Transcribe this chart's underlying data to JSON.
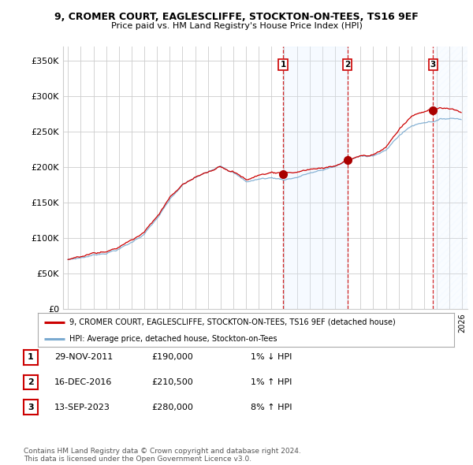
{
  "title_line1": "9, CROMER COURT, EAGLESCLIFFE, STOCKTON-ON-TEES, TS16 9EF",
  "title_line2": "Price paid vs. HM Land Registry's House Price Index (HPI)",
  "ylabel_ticks": [
    "£0",
    "£50K",
    "£100K",
    "£150K",
    "£200K",
    "£250K",
    "£300K",
    "£350K"
  ],
  "ytick_values": [
    0,
    50000,
    100000,
    150000,
    200000,
    250000,
    300000,
    350000
  ],
  "ylim": [
    0,
    370000
  ],
  "xlim_start": 1994.6,
  "xlim_end": 2026.4,
  "sale_dates": [
    2011.91,
    2016.96,
    2023.7
  ],
  "sale_prices": [
    190000,
    210500,
    280000
  ],
  "sale_labels": [
    "1",
    "2",
    "3"
  ],
  "vline_color": "#cc0000",
  "sale_marker_color": "#aa0000",
  "hpi_line_color": "#7aaad0",
  "price_line_color": "#cc0000",
  "highlight_fill_color": "#ddeeff",
  "legend_label_price": "9, CROMER COURT, EAGLESCLIFFE, STOCKTON-ON-TEES, TS16 9EF (detached house)",
  "legend_label_hpi": "HPI: Average price, detached house, Stockton-on-Tees",
  "table_rows": [
    {
      "num": "1",
      "date": "29-NOV-2011",
      "price": "£190,000",
      "change": "1% ↓ HPI"
    },
    {
      "num": "2",
      "date": "16-DEC-2016",
      "price": "£210,500",
      "change": "1% ↑ HPI"
    },
    {
      "num": "3",
      "date": "13-SEP-2023",
      "price": "£280,000",
      "change": "8% ↑ HPI"
    }
  ],
  "footnote": "Contains HM Land Registry data © Crown copyright and database right 2024.\nThis data is licensed under the Open Government Licence v3.0.",
  "bg_color": "#ffffff",
  "grid_color": "#cccccc",
  "highlight_region": [
    2011.91,
    2016.96
  ],
  "hatch_region_start": 2023.7
}
